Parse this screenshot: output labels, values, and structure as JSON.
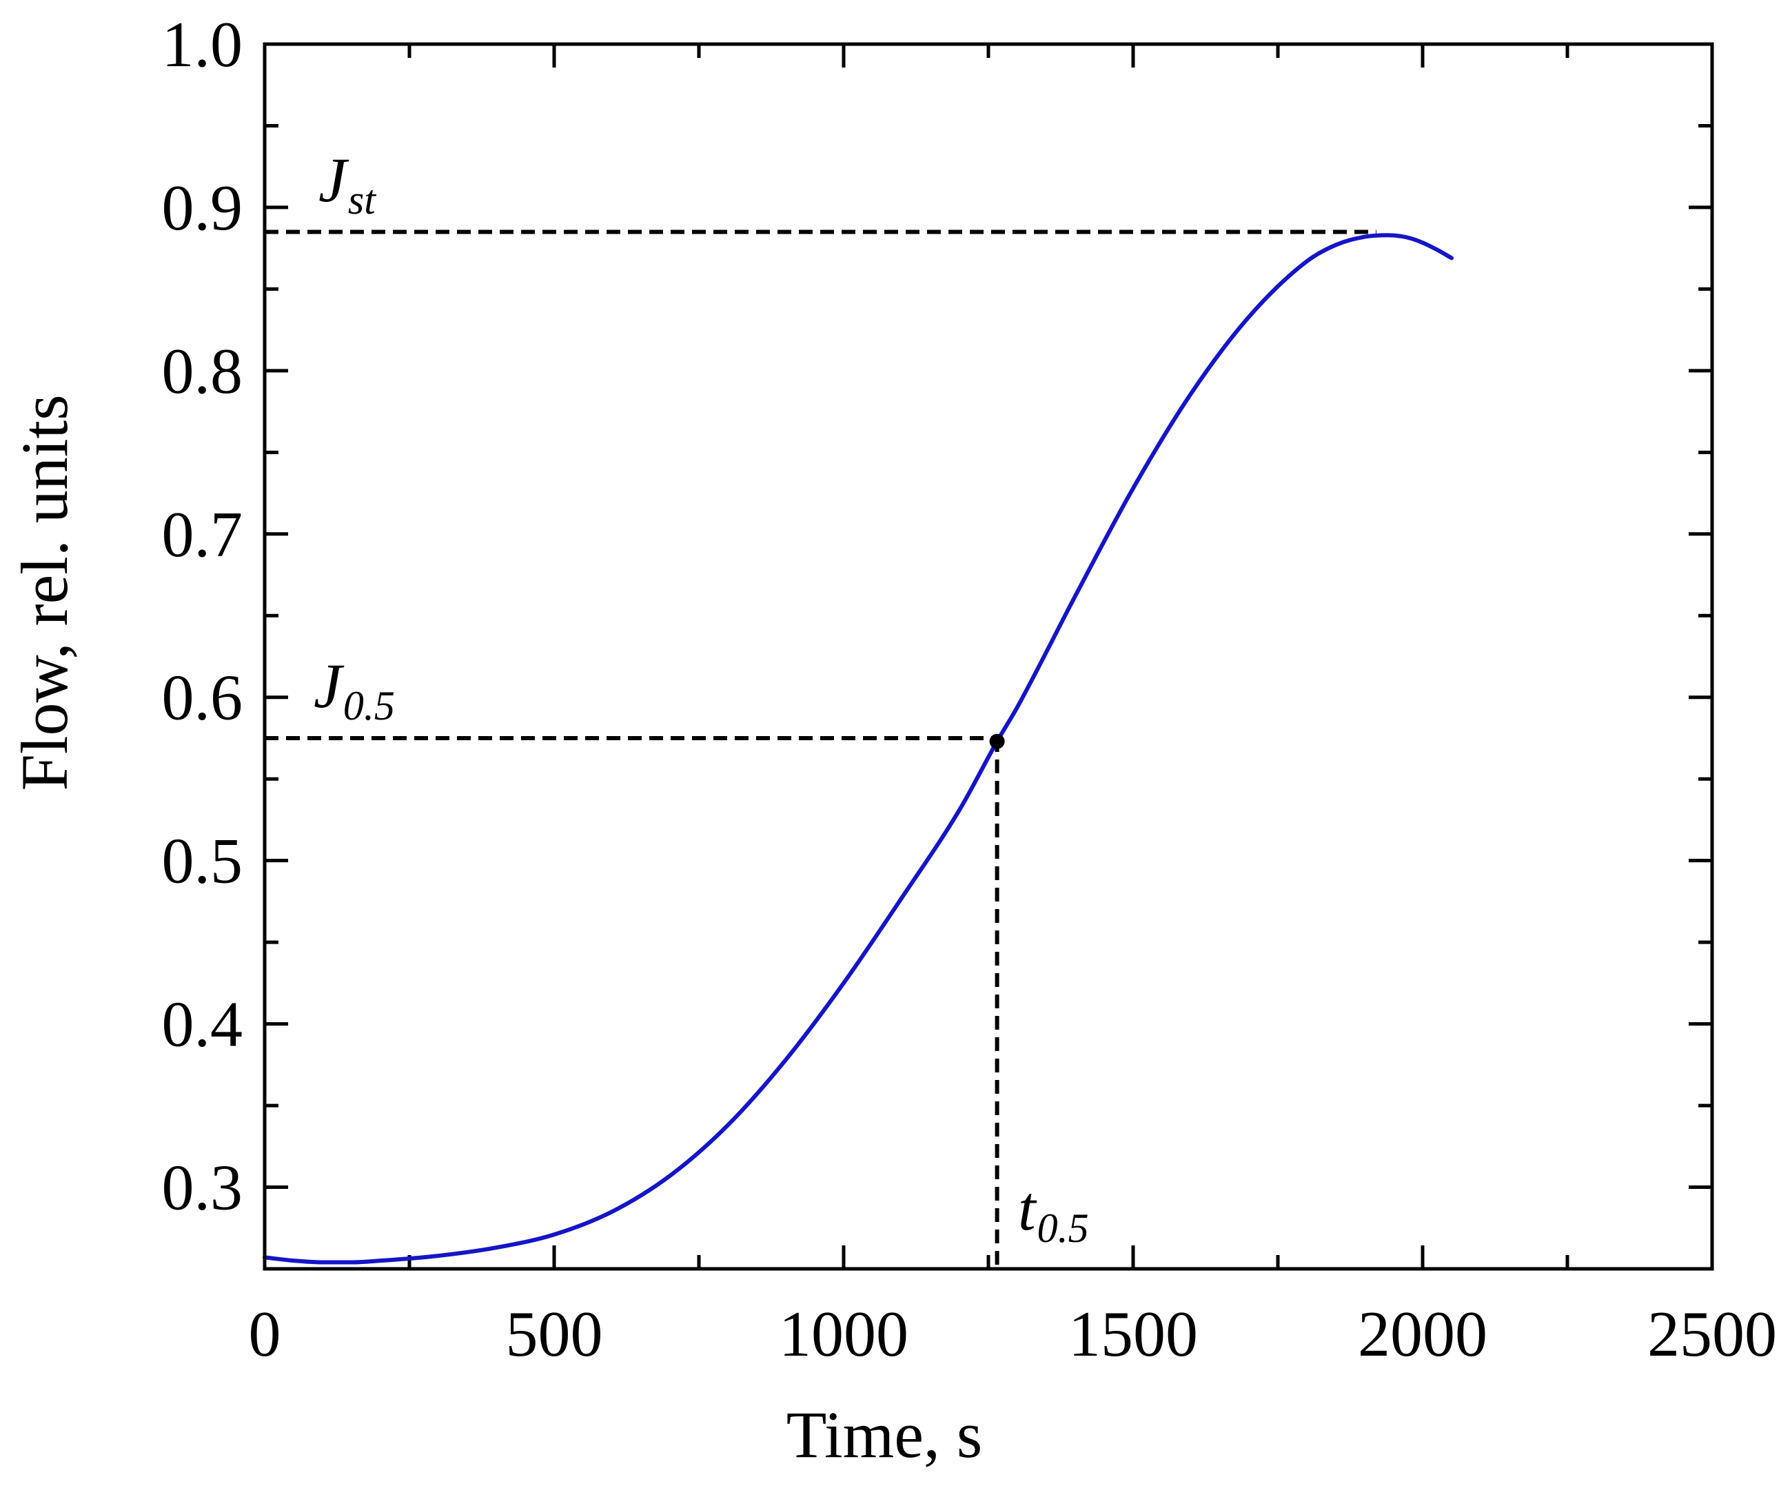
{
  "chart_data": {
    "type": "line",
    "title": "",
    "xlabel": "Time, s",
    "ylabel": "Flow, rel. units",
    "xlim": [
      0,
      2500
    ],
    "ylim": [
      0.25,
      1.0
    ],
    "x_ticks": [
      "0",
      "500",
      "1000",
      "1500",
      "2000",
      "2500"
    ],
    "y_ticks": [
      "0.3",
      "0.4",
      "0.5",
      "0.6",
      "0.7",
      "0.8",
      "0.9",
      "1.0"
    ],
    "grid": false,
    "colors": {
      "line": "#1515c8",
      "reference": "#000000"
    },
    "series": [
      {
        "x": [
          0,
          50,
          100,
          150,
          200,
          300,
          400,
          500,
          600,
          700,
          800,
          900,
          1000,
          1100,
          1200,
          1265,
          1300,
          1400,
          1500,
          1600,
          1700,
          1800,
          1850,
          1900,
          1940,
          1980,
          2020,
          2050
        ],
        "y": [
          0.257,
          0.255,
          0.254,
          0.254,
          0.255,
          0.258,
          0.263,
          0.271,
          0.285,
          0.307,
          0.338,
          0.378,
          0.425,
          0.477,
          0.531,
          0.573,
          0.594,
          0.662,
          0.728,
          0.786,
          0.833,
          0.867,
          0.877,
          0.882,
          0.883,
          0.881,
          0.875,
          0.869
        ]
      }
    ],
    "reference_lines": {
      "steady_flow": 0.885,
      "steady_flow_end_x": 1920,
      "half_flow": 0.575,
      "half_time": 1265
    },
    "marker": {
      "x": 1265,
      "y": 0.573
    },
    "annotations": [
      {
        "main": "J",
        "sub": "st"
      },
      {
        "main": "J",
        "sub": "0.5"
      },
      {
        "main": "t",
        "sub": "0.5"
      }
    ]
  }
}
